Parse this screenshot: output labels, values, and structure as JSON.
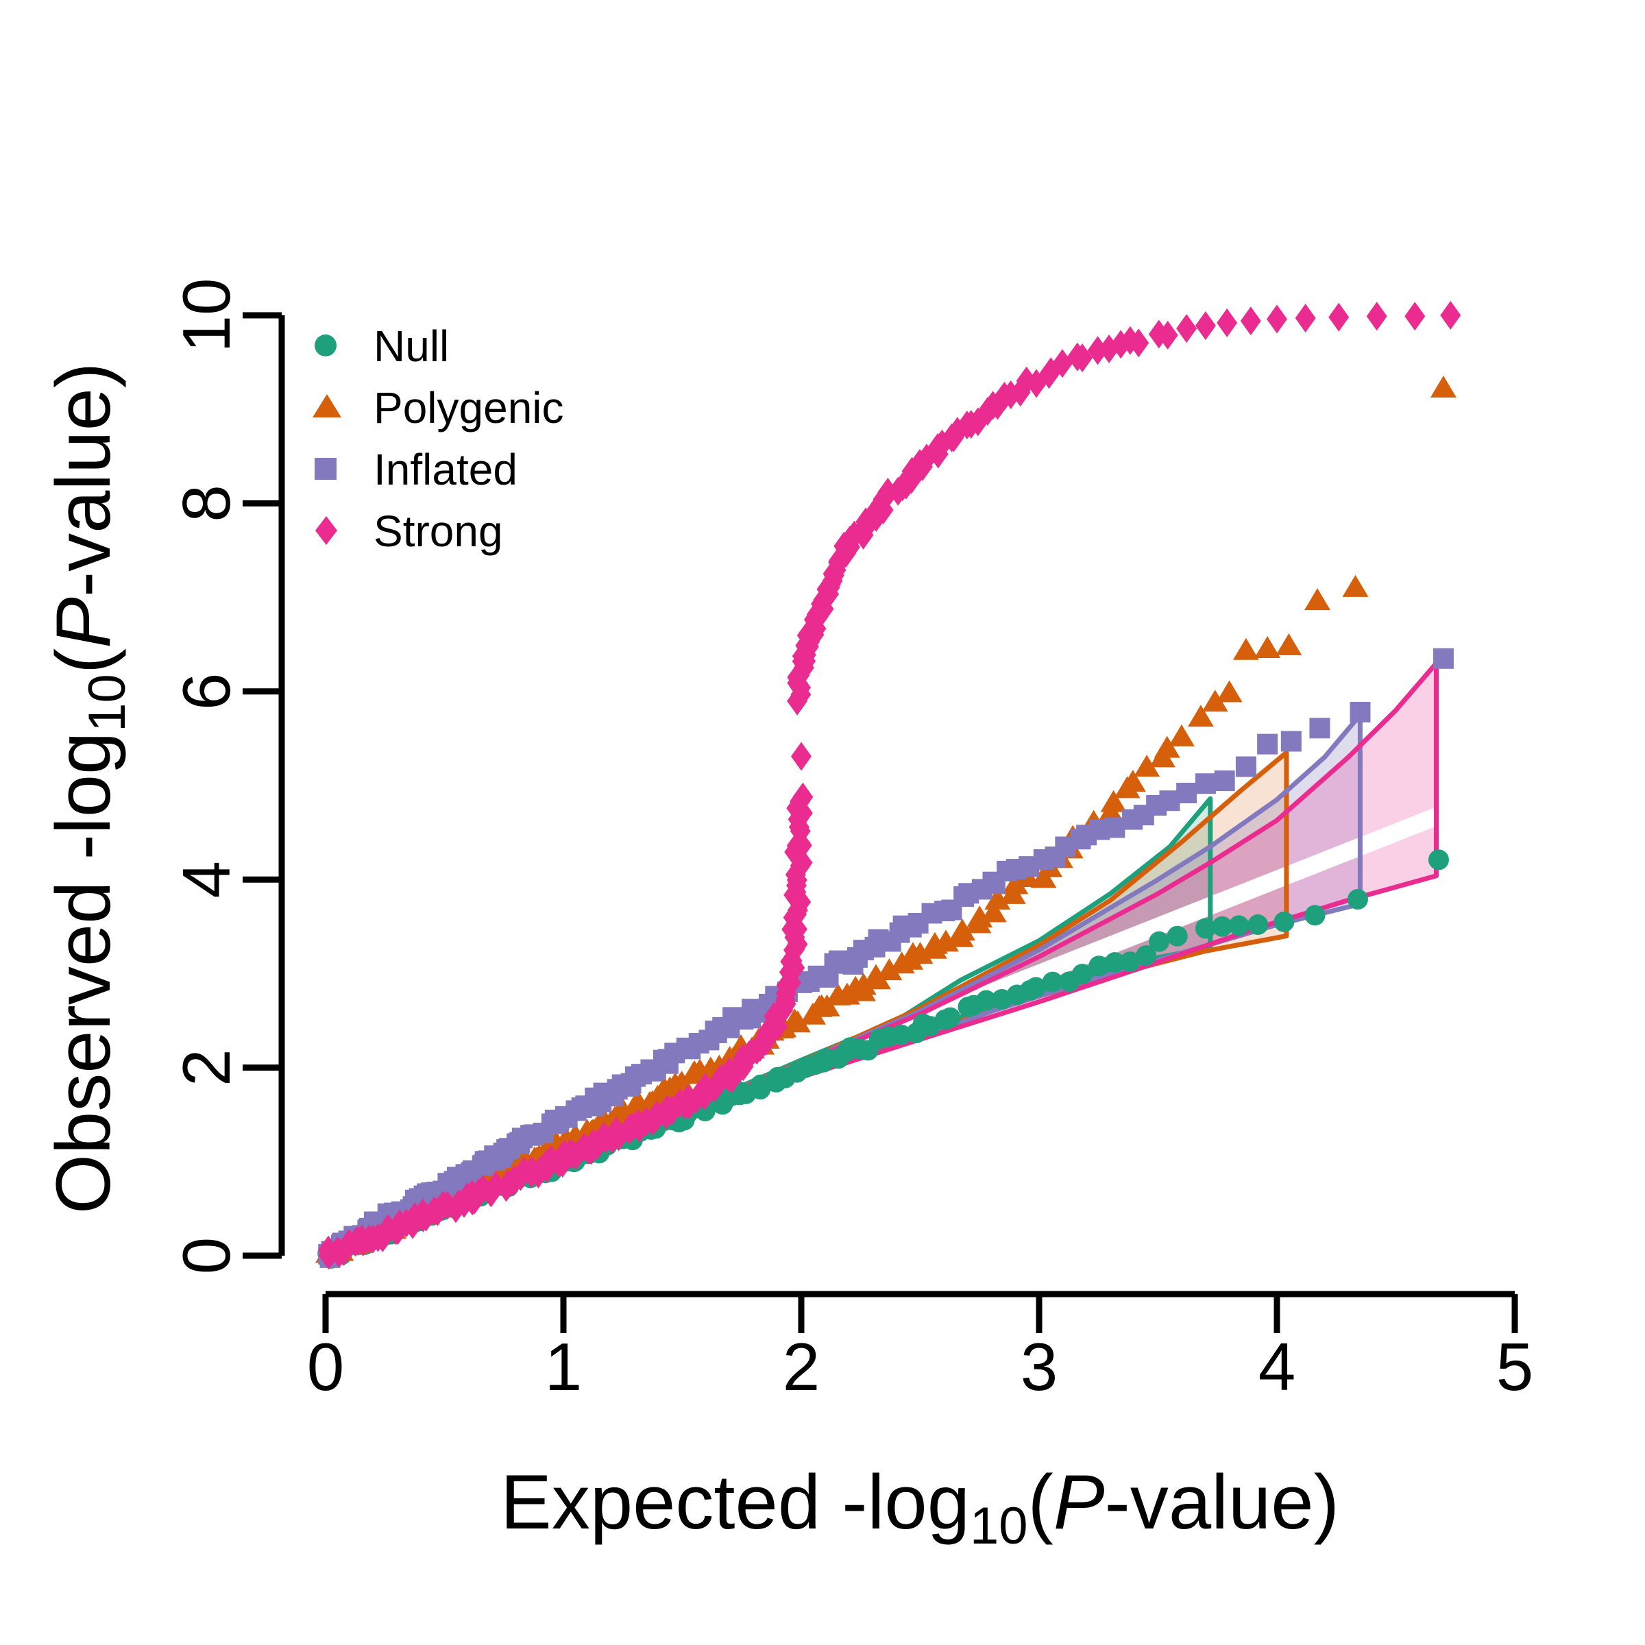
{
  "figure": {
    "background": "#ffffff"
  },
  "chart_data": {
    "type": "scatter",
    "subtype": "qq-plot",
    "title": "",
    "xlabel_parts": {
      "prefix": "Expected -log",
      "sub": "10",
      "open": "(",
      "pvar": "P",
      "suffix": "-value)"
    },
    "ylabel_parts": {
      "prefix": "Observed -log",
      "sub": "10",
      "open": "(",
      "pvar": "P",
      "suffix": "-value)"
    },
    "xlim": [
      0,
      5
    ],
    "ylim": [
      0,
      10
    ],
    "xticks": [
      0,
      1,
      2,
      3,
      4,
      5
    ],
    "yticks": [
      0,
      2,
      4,
      6,
      8,
      10
    ],
    "grid": false,
    "legend_position": "top-left",
    "identity_line": {
      "color": "#ffffff",
      "x": [
        0,
        4.73
      ],
      "y": [
        0,
        4.73
      ]
    },
    "series": [
      {
        "name": "Null",
        "marker": "circle",
        "color": "#1fa07d",
        "fill_alpha": 0.2,
        "dense": [
          [
            0,
            0
          ],
          [
            0.5,
            0.5
          ],
          [
            1,
            1.0
          ],
          [
            1.5,
            1.48
          ],
          [
            2,
            1.95
          ],
          [
            2.4,
            2.33
          ],
          [
            2.8,
            2.7
          ],
          [
            3.1,
            2.95
          ],
          [
            3.4,
            3.2
          ],
          [
            3.6,
            3.38
          ]
        ],
        "tail": [
          [
            3.7,
            3.48
          ],
          [
            3.77,
            3.5
          ],
          [
            3.84,
            3.51
          ],
          [
            3.92,
            3.52
          ],
          [
            4.03,
            3.55
          ],
          [
            4.16,
            3.62
          ],
          [
            4.34,
            3.79
          ],
          [
            4.68,
            4.21
          ]
        ],
        "envelope": {
          "right_x": 3.72,
          "upper": [
            [
              1.5,
              1.53
            ],
            [
              2.0,
              2.08
            ],
            [
              2.4,
              2.5
            ],
            [
              2.67,
              2.93
            ],
            [
              3.0,
              3.35
            ],
            [
              3.3,
              3.85
            ],
            [
              3.55,
              4.35
            ],
            [
              3.72,
              4.86
            ]
          ],
          "lower": [
            [
              1.5,
              1.47
            ],
            [
              2.0,
              1.97
            ],
            [
              2.4,
              2.3
            ],
            [
              2.9,
              2.73
            ],
            [
              3.2,
              2.97
            ],
            [
              3.5,
              3.17
            ],
            [
              3.72,
              3.28
            ]
          ]
        }
      },
      {
        "name": "Polygenic",
        "marker": "triangle",
        "color": "#d55f0a",
        "fill_alpha": 0.18,
        "dense": [
          [
            0,
            0
          ],
          [
            0.5,
            0.57
          ],
          [
            1,
            1.18
          ],
          [
            1.5,
            1.83
          ],
          [
            2,
            2.5
          ],
          [
            2.4,
            3.05
          ],
          [
            2.7,
            3.5
          ],
          [
            3.0,
            4.05
          ],
          [
            3.2,
            4.5
          ],
          [
            3.35,
            4.9
          ],
          [
            3.5,
            5.3
          ],
          [
            3.6,
            5.55
          ]
        ],
        "tail": [
          [
            3.68,
            5.72
          ],
          [
            3.74,
            5.88
          ],
          [
            3.8,
            5.98
          ],
          [
            3.87,
            6.43
          ],
          [
            3.96,
            6.45
          ],
          [
            4.05,
            6.48
          ],
          [
            4.17,
            6.96
          ],
          [
            4.33,
            7.1
          ],
          [
            4.7,
            9.22
          ]
        ],
        "envelope": {
          "right_x": 4.04,
          "upper": [
            [
              1.5,
              1.52
            ],
            [
              2.0,
              2.06
            ],
            [
              2.5,
              2.63
            ],
            [
              3.0,
              3.3
            ],
            [
              3.3,
              3.78
            ],
            [
              3.6,
              4.4
            ],
            [
              3.85,
              4.95
            ],
            [
              4.04,
              5.35
            ]
          ],
          "lower": [
            [
              1.5,
              1.45
            ],
            [
              2.0,
              1.94
            ],
            [
              2.5,
              2.36
            ],
            [
              3.0,
              2.76
            ],
            [
              3.3,
              2.98
            ],
            [
              3.7,
              3.24
            ],
            [
              4.04,
              3.4
            ]
          ]
        }
      },
      {
        "name": "Inflated",
        "marker": "square",
        "color": "#8379bf",
        "fill_alpha": 0.26,
        "dense": [
          [
            0,
            0
          ],
          [
            0.5,
            0.73
          ],
          [
            1,
            1.45
          ],
          [
            1.5,
            2.17
          ],
          [
            2,
            2.87
          ],
          [
            2.4,
            3.42
          ],
          [
            2.8,
            3.95
          ],
          [
            3.1,
            4.3
          ],
          [
            3.35,
            4.6
          ],
          [
            3.55,
            4.8
          ]
        ],
        "tail": [
          [
            3.62,
            4.92
          ],
          [
            3.7,
            5.02
          ],
          [
            3.78,
            5.05
          ],
          [
            3.87,
            5.2
          ],
          [
            3.96,
            5.44
          ],
          [
            4.06,
            5.47
          ],
          [
            4.18,
            5.61
          ],
          [
            4.35,
            5.78
          ],
          [
            4.7,
            6.35
          ]
        ],
        "envelope": {
          "right_x": 4.35,
          "upper": [
            [
              1.5,
              1.52
            ],
            [
              2.0,
              2.05
            ],
            [
              2.5,
              2.6
            ],
            [
              3.0,
              3.25
            ],
            [
              3.5,
              4.0
            ],
            [
              3.72,
              4.35
            ],
            [
              4.0,
              4.85
            ],
            [
              4.2,
              5.3
            ],
            [
              4.35,
              5.75
            ]
          ],
          "lower": [
            [
              1.5,
              1.44
            ],
            [
              2.0,
              1.92
            ],
            [
              2.4,
              2.22
            ],
            [
              2.8,
              2.6
            ],
            [
              3.2,
              2.92
            ],
            [
              3.6,
              3.22
            ],
            [
              4.0,
              3.52
            ],
            [
              4.35,
              3.74
            ]
          ]
        }
      },
      {
        "name": "Strong",
        "marker": "diamond",
        "color": "#ea2b90",
        "fill_alpha": 0.22,
        "dense": [
          [
            0,
            0
          ],
          [
            0.3,
            0.3
          ],
          [
            0.6,
            0.6
          ],
          [
            0.9,
            0.92
          ],
          [
            1.2,
            1.25
          ],
          [
            1.45,
            1.55
          ],
          [
            1.6,
            1.75
          ],
          [
            1.72,
            1.95
          ],
          [
            1.82,
            2.2
          ],
          [
            1.89,
            2.45
          ],
          [
            1.93,
            2.7
          ],
          [
            1.96,
            3.0
          ],
          [
            1.975,
            3.4
          ],
          [
            1.985,
            3.9
          ],
          [
            1.99,
            4.4
          ],
          [
            1.995,
            4.9
          ]
        ],
        "dense2": [
          [
            1.98,
            5.9
          ],
          [
            2.0,
            6.25
          ],
          [
            2.03,
            6.55
          ],
          [
            2.07,
            6.85
          ],
          [
            2.12,
            7.15
          ],
          [
            2.18,
            7.45
          ],
          [
            2.26,
            7.75
          ],
          [
            2.36,
            8.05
          ],
          [
            2.48,
            8.35
          ],
          [
            2.62,
            8.65
          ],
          [
            2.78,
            8.95
          ],
          [
            2.95,
            9.25
          ],
          [
            3.1,
            9.47
          ],
          [
            3.25,
            9.62
          ],
          [
            3.4,
            9.73
          ],
          [
            3.55,
            9.81
          ]
        ],
        "mid_point": [
          2.0,
          5.31
        ],
        "tail": [
          [
            3.62,
            9.86
          ],
          [
            3.7,
            9.89
          ],
          [
            3.79,
            9.92
          ],
          [
            3.89,
            9.94
          ],
          [
            4.0,
            9.96
          ],
          [
            4.12,
            9.97
          ],
          [
            4.26,
            9.98
          ],
          [
            4.42,
            9.99
          ],
          [
            4.58,
            9.99
          ],
          [
            4.73,
            10.0
          ]
        ],
        "envelope": {
          "right_x": 4.67,
          "upper": [
            [
              1.5,
              1.51
            ],
            [
              2.0,
              2.04
            ],
            [
              2.5,
              2.57
            ],
            [
              3.0,
              3.18
            ],
            [
              3.5,
              3.85
            ],
            [
              3.72,
              4.18
            ],
            [
              4.0,
              4.63
            ],
            [
              4.3,
              5.3
            ],
            [
              4.5,
              5.8
            ],
            [
              4.67,
              6.3
            ]
          ],
          "lower": [
            [
              1.5,
              1.43
            ],
            [
              2.0,
              1.9
            ],
            [
              2.5,
              2.3
            ],
            [
              3.0,
              2.7
            ],
            [
              3.5,
              3.12
            ],
            [
              3.9,
              3.47
            ],
            [
              4.3,
              3.78
            ],
            [
              4.67,
              4.04
            ]
          ]
        }
      }
    ]
  }
}
